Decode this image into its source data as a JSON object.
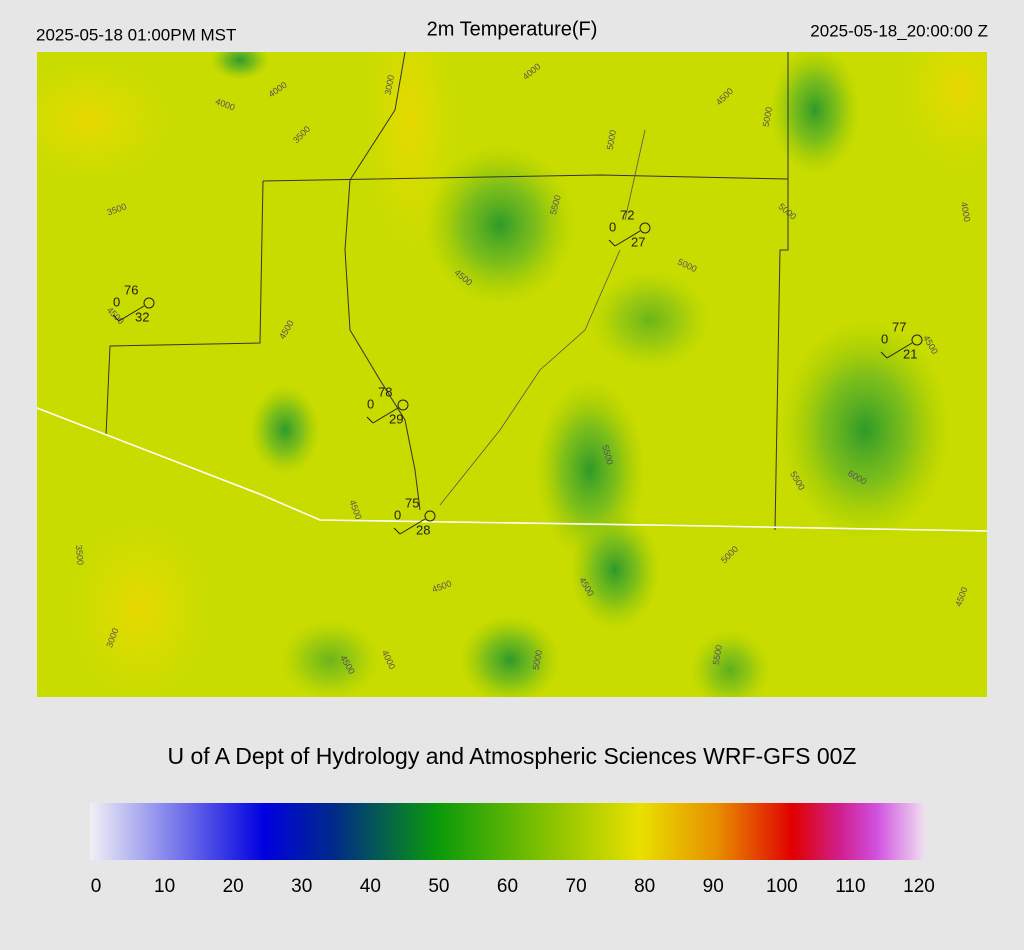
{
  "header": {
    "local_time": "2025-05-18 01:00PM MST",
    "title": "2m Temperature(F)",
    "utc_time": "2025-05-18_20:00:00 Z"
  },
  "footer": "U of A Dept of Hydrology and Atmospheric Sciences WRF-GFS 00Z",
  "stations": [
    {
      "temperature": 76,
      "dewpoint": 0,
      "wind": 32
    },
    {
      "temperature": 72,
      "dewpoint": 0,
      "wind": 27
    },
    {
      "temperature": 77,
      "dewpoint": 0,
      "wind": 21
    },
    {
      "temperature": 78,
      "dewpoint": 0,
      "wind": 29
    },
    {
      "temperature": 75,
      "dewpoint": 0,
      "wind": 28
    }
  ],
  "contour_labels": [
    "4000",
    "4000",
    "3000",
    "3500",
    "4000",
    "4500",
    "5000",
    "5000",
    "5500",
    "5000",
    "4000",
    "3500",
    "4500",
    "5000",
    "4500",
    "4500",
    "4500",
    "5500",
    "4500",
    "6000",
    "5500",
    "3500",
    "5000",
    "4500",
    "4500",
    "4500",
    "3000",
    "4000",
    "4500",
    "5000",
    "5500"
  ],
  "chart_data": {
    "type": "colorbar",
    "xlim": [
      0,
      120
    ],
    "xticks": [
      0,
      10,
      20,
      30,
      40,
      50,
      60,
      70,
      80,
      90,
      100,
      110,
      120
    ],
    "stops": [
      {
        "value": 0,
        "color": "#f0f0f6"
      },
      {
        "value": 25,
        "color": "#0000e0"
      },
      {
        "value": 35,
        "color": "#002a8a"
      },
      {
        "value": 50,
        "color": "#0a9a0a"
      },
      {
        "value": 65,
        "color": "#80c000"
      },
      {
        "value": 79,
        "color": "#e8e000"
      },
      {
        "value": 90,
        "color": "#e89000"
      },
      {
        "value": 101,
        "color": "#e00000"
      },
      {
        "value": 108,
        "color": "#d02090"
      },
      {
        "value": 113,
        "color": "#d050e0"
      },
      {
        "value": 120,
        "color": "#f0e0f0"
      }
    ]
  }
}
